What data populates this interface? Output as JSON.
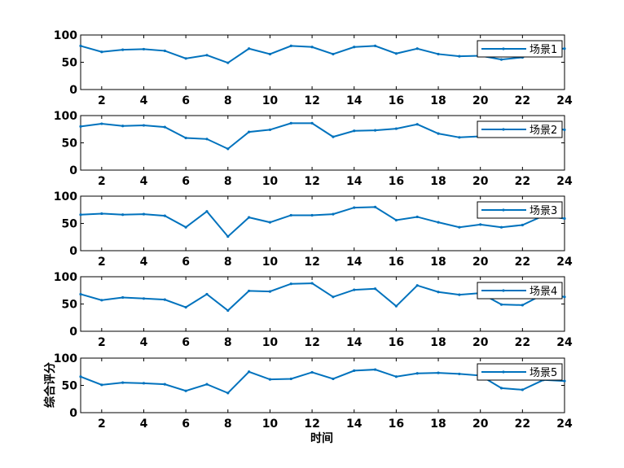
{
  "figure": {
    "xlabel": "时间",
    "ylabel": "综合评分"
  },
  "chart_data": [
    {
      "type": "line",
      "series": [
        {
          "name": "场景1",
          "color": "#0072bd",
          "x": [
            1,
            2,
            3,
            4,
            5,
            6,
            7,
            8,
            9,
            10,
            11,
            12,
            13,
            14,
            15,
            16,
            17,
            18,
            19,
            20,
            21,
            22,
            23,
            24
          ],
          "values": [
            80,
            69,
            73,
            74,
            71,
            57,
            63,
            49,
            75,
            65,
            80,
            78,
            65,
            78,
            80,
            66,
            75,
            65,
            61,
            62,
            55,
            59,
            75,
            75
          ]
        }
      ],
      "xlim": [
        1,
        24
      ],
      "ylim": [
        0,
        100
      ],
      "xticks": [
        2,
        4,
        6,
        8,
        10,
        12,
        14,
        16,
        18,
        20,
        22,
        24
      ],
      "yticks": [
        0,
        50,
        100
      ],
      "legend": "top-right",
      "grid": false
    },
    {
      "type": "line",
      "series": [
        {
          "name": "场景2",
          "color": "#0072bd",
          "x": [
            1,
            2,
            3,
            4,
            5,
            6,
            7,
            8,
            9,
            10,
            11,
            12,
            13,
            14,
            15,
            16,
            17,
            18,
            19,
            20,
            21,
            22,
            23,
            24
          ],
          "values": [
            80,
            85,
            81,
            82,
            79,
            59,
            57,
            39,
            70,
            74,
            86,
            86,
            61,
            72,
            73,
            76,
            84,
            67,
            60,
            62,
            64,
            70,
            78,
            74
          ]
        }
      ],
      "xlim": [
        1,
        24
      ],
      "ylim": [
        0,
        100
      ],
      "xticks": [
        2,
        4,
        6,
        8,
        10,
        12,
        14,
        16,
        18,
        20,
        22,
        24
      ],
      "yticks": [
        0,
        50,
        100
      ],
      "legend": "top-right",
      "grid": false
    },
    {
      "type": "line",
      "series": [
        {
          "name": "场景3",
          "color": "#0072bd",
          "x": [
            1,
            2,
            3,
            4,
            5,
            6,
            7,
            8,
            9,
            10,
            11,
            12,
            13,
            14,
            15,
            16,
            17,
            18,
            19,
            20,
            21,
            22,
            23,
            24
          ],
          "values": [
            66,
            68,
            66,
            67,
            64,
            43,
            72,
            26,
            61,
            52,
            65,
            65,
            67,
            79,
            80,
            56,
            62,
            52,
            43,
            48,
            43,
            47,
            64,
            59
          ]
        }
      ],
      "xlim": [
        1,
        24
      ],
      "ylim": [
        0,
        100
      ],
      "xticks": [
        2,
        4,
        6,
        8,
        10,
        12,
        14,
        16,
        18,
        20,
        22,
        24
      ],
      "yticks": [
        0,
        50,
        100
      ],
      "legend": "top-right",
      "grid": false
    },
    {
      "type": "line",
      "series": [
        {
          "name": "场景4",
          "color": "#0072bd",
          "x": [
            1,
            2,
            3,
            4,
            5,
            6,
            7,
            8,
            9,
            10,
            11,
            12,
            13,
            14,
            15,
            16,
            17,
            18,
            19,
            20,
            21,
            22,
            23,
            24
          ],
          "values": [
            68,
            57,
            62,
            60,
            58,
            44,
            68,
            38,
            74,
            73,
            87,
            88,
            63,
            76,
            78,
            46,
            84,
            72,
            67,
            70,
            49,
            48,
            68,
            63
          ]
        }
      ],
      "xlim": [
        1,
        24
      ],
      "ylim": [
        0,
        100
      ],
      "xticks": [
        2,
        4,
        6,
        8,
        10,
        12,
        14,
        16,
        18,
        20,
        22,
        24
      ],
      "yticks": [
        0,
        50,
        100
      ],
      "legend": "top-right",
      "grid": false
    },
    {
      "type": "line",
      "series": [
        {
          "name": "场景5",
          "color": "#0072bd",
          "x": [
            1,
            2,
            3,
            4,
            5,
            6,
            7,
            8,
            9,
            10,
            11,
            12,
            13,
            14,
            15,
            16,
            17,
            18,
            19,
            20,
            21,
            22,
            23,
            24
          ],
          "values": [
            66,
            51,
            55,
            54,
            52,
            40,
            52,
            36,
            75,
            61,
            62,
            74,
            62,
            77,
            79,
            66,
            72,
            73,
            71,
            68,
            45,
            42,
            60,
            58
          ]
        }
      ],
      "xlim": [
        1,
        24
      ],
      "ylim": [
        0,
        100
      ],
      "xticks": [
        2,
        4,
        6,
        8,
        10,
        12,
        14,
        16,
        18,
        20,
        22,
        24
      ],
      "yticks": [
        0,
        50,
        100
      ],
      "legend": "top-right",
      "grid": false
    }
  ]
}
